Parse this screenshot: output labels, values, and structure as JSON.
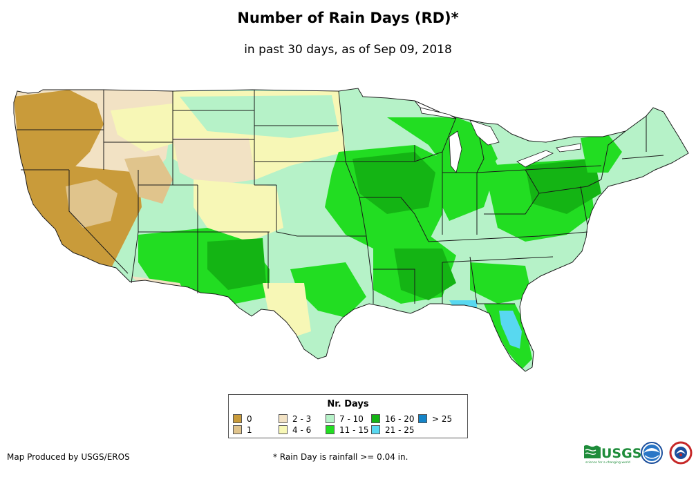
{
  "title": "Number of Rain Days (RD)*",
  "subtitle": "in past 30 days, as of Sep 09, 2018",
  "legend": {
    "title": "Nr. Days",
    "items": [
      {
        "label": "0",
        "color": "#c99b3a"
      },
      {
        "label": "1",
        "color": "#e0c48c"
      },
      {
        "label": "2 - 3",
        "color": "#f2e2c4"
      },
      {
        "label": "4 - 6",
        "color": "#f7f7b6"
      },
      {
        "label": "7 - 10",
        "color": "#b6f2c8"
      },
      {
        "label": "11 - 15",
        "color": "#22dd22"
      },
      {
        "label": "16 - 20",
        "color": "#14b414"
      },
      {
        "label": "21 - 25",
        "color": "#58d8f0"
      },
      {
        "label": "> 25",
        "color": "#1484c8"
      }
    ]
  },
  "credit": "Map Produced by USGS/EROS",
  "footnote": "* Rain Day is rainfall >= 0.04 in.",
  "logos": {
    "usgs": "USGS",
    "usgs_tagline": "science for a changing world",
    "noaa_icon": "noaa-logo-icon",
    "nws_icon": "national-weather-service-logo-icon"
  }
}
